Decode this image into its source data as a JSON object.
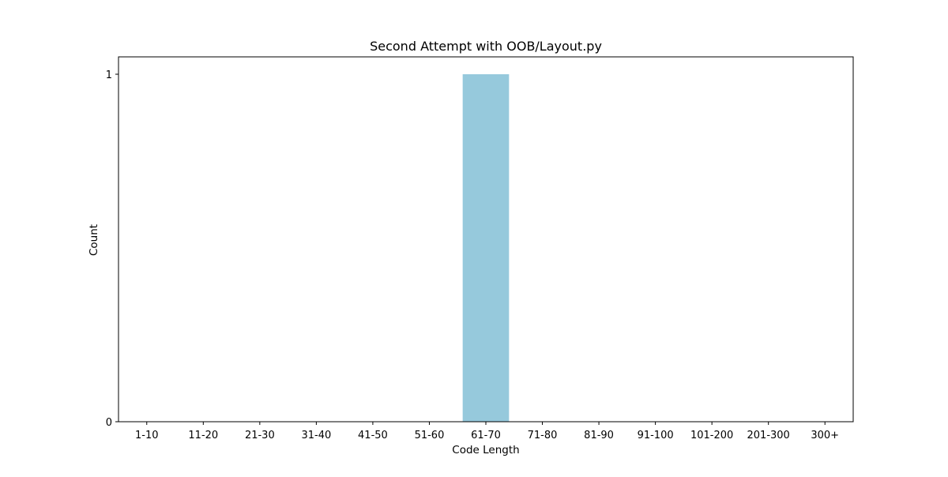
{
  "chart_data": {
    "type": "bar",
    "title": "Second Attempt with OOB/Layout.py",
    "xlabel": "Code Length",
    "ylabel": "Count",
    "categories": [
      "1-10",
      "11-20",
      "21-30",
      "31-40",
      "41-50",
      "51-60",
      "61-70",
      "71-80",
      "81-90",
      "91-100",
      "101-200",
      "201-300",
      "300+"
    ],
    "values": [
      0,
      0,
      0,
      0,
      0,
      0,
      1,
      0,
      0,
      0,
      0,
      0,
      0
    ],
    "yticks": [
      0,
      1
    ],
    "ylim": [
      0,
      1.05
    ],
    "grid": false,
    "bar_color": "#96c9dc"
  }
}
